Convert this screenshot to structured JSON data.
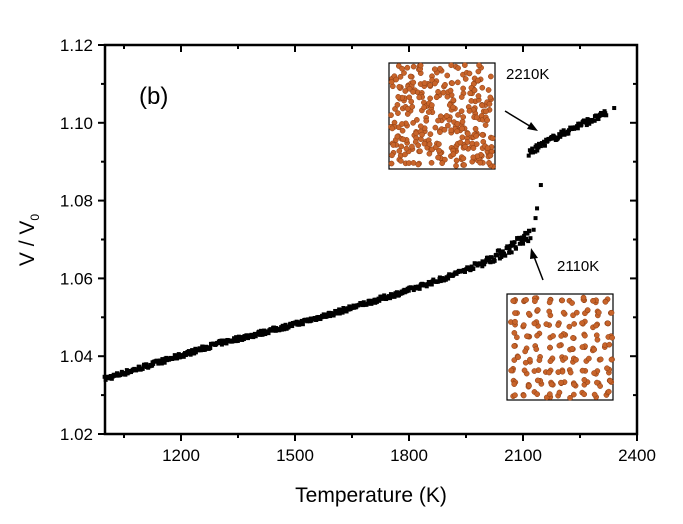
{
  "chart_data": {
    "type": "scatter",
    "title": "",
    "panel_label": "(b)",
    "xlabel": "Temperature (K)",
    "ylabel_main": "V / V",
    "ylabel_sub": "0",
    "xlim": [
      1000,
      2400
    ],
    "ylim": [
      1.02,
      1.12
    ],
    "xticks": [
      1200,
      1500,
      1800,
      2100,
      2400
    ],
    "xtick_labels": [
      "1200",
      "1500",
      "1800",
      "2100",
      "2400"
    ],
    "xminor": [
      1050,
      1350,
      1650,
      1950,
      2250
    ],
    "yticks": [
      1.02,
      1.04,
      1.06,
      1.08,
      1.1,
      1.12
    ],
    "ytick_labels": [
      "1.02",
      "1.04",
      "1.06",
      "1.08",
      "1.10",
      "1.12"
    ],
    "yminor": [
      1.03,
      1.05,
      1.07,
      1.09,
      1.11
    ],
    "grid": false,
    "marker_color": "#000000",
    "series": [
      {
        "name": "lower branch (solid)",
        "x": [
          1000,
          1100,
          1200,
          1300,
          1400,
          1500,
          1600,
          1700,
          1800,
          1900,
          2000,
          2050,
          2100,
          2120
        ],
        "y": [
          1.0342,
          1.0372,
          1.0402,
          1.0433,
          1.0457,
          1.0482,
          1.051,
          1.054,
          1.057,
          1.0603,
          1.0643,
          1.0668,
          1.07,
          1.0715
        ]
      },
      {
        "name": "transition points",
        "x": [
          2128,
          2133,
          2137,
          2147
        ],
        "y": [
          1.0725,
          1.0755,
          1.078,
          1.084
        ]
      },
      {
        "name": "upper branch (liquid)",
        "x": [
          2116,
          2150,
          2200,
          2250,
          2300,
          2320,
          2340
        ],
        "y": [
          1.092,
          1.0945,
          1.097,
          1.0995,
          1.1015,
          1.1025,
          1.1038
        ]
      }
    ],
    "annotations": [
      {
        "text": "2210K",
        "points_to": [
          2160,
          1.0955
        ]
      },
      {
        "text": "2110K",
        "points_to": [
          2110,
          1.0713
        ]
      }
    ],
    "insets": [
      {
        "name": "liquid-snapshot",
        "label": "2210K",
        "atom_color": "#c8642a"
      },
      {
        "name": "solid-snapshot",
        "label": "2110K",
        "atom_color": "#c8642a"
      }
    ]
  }
}
